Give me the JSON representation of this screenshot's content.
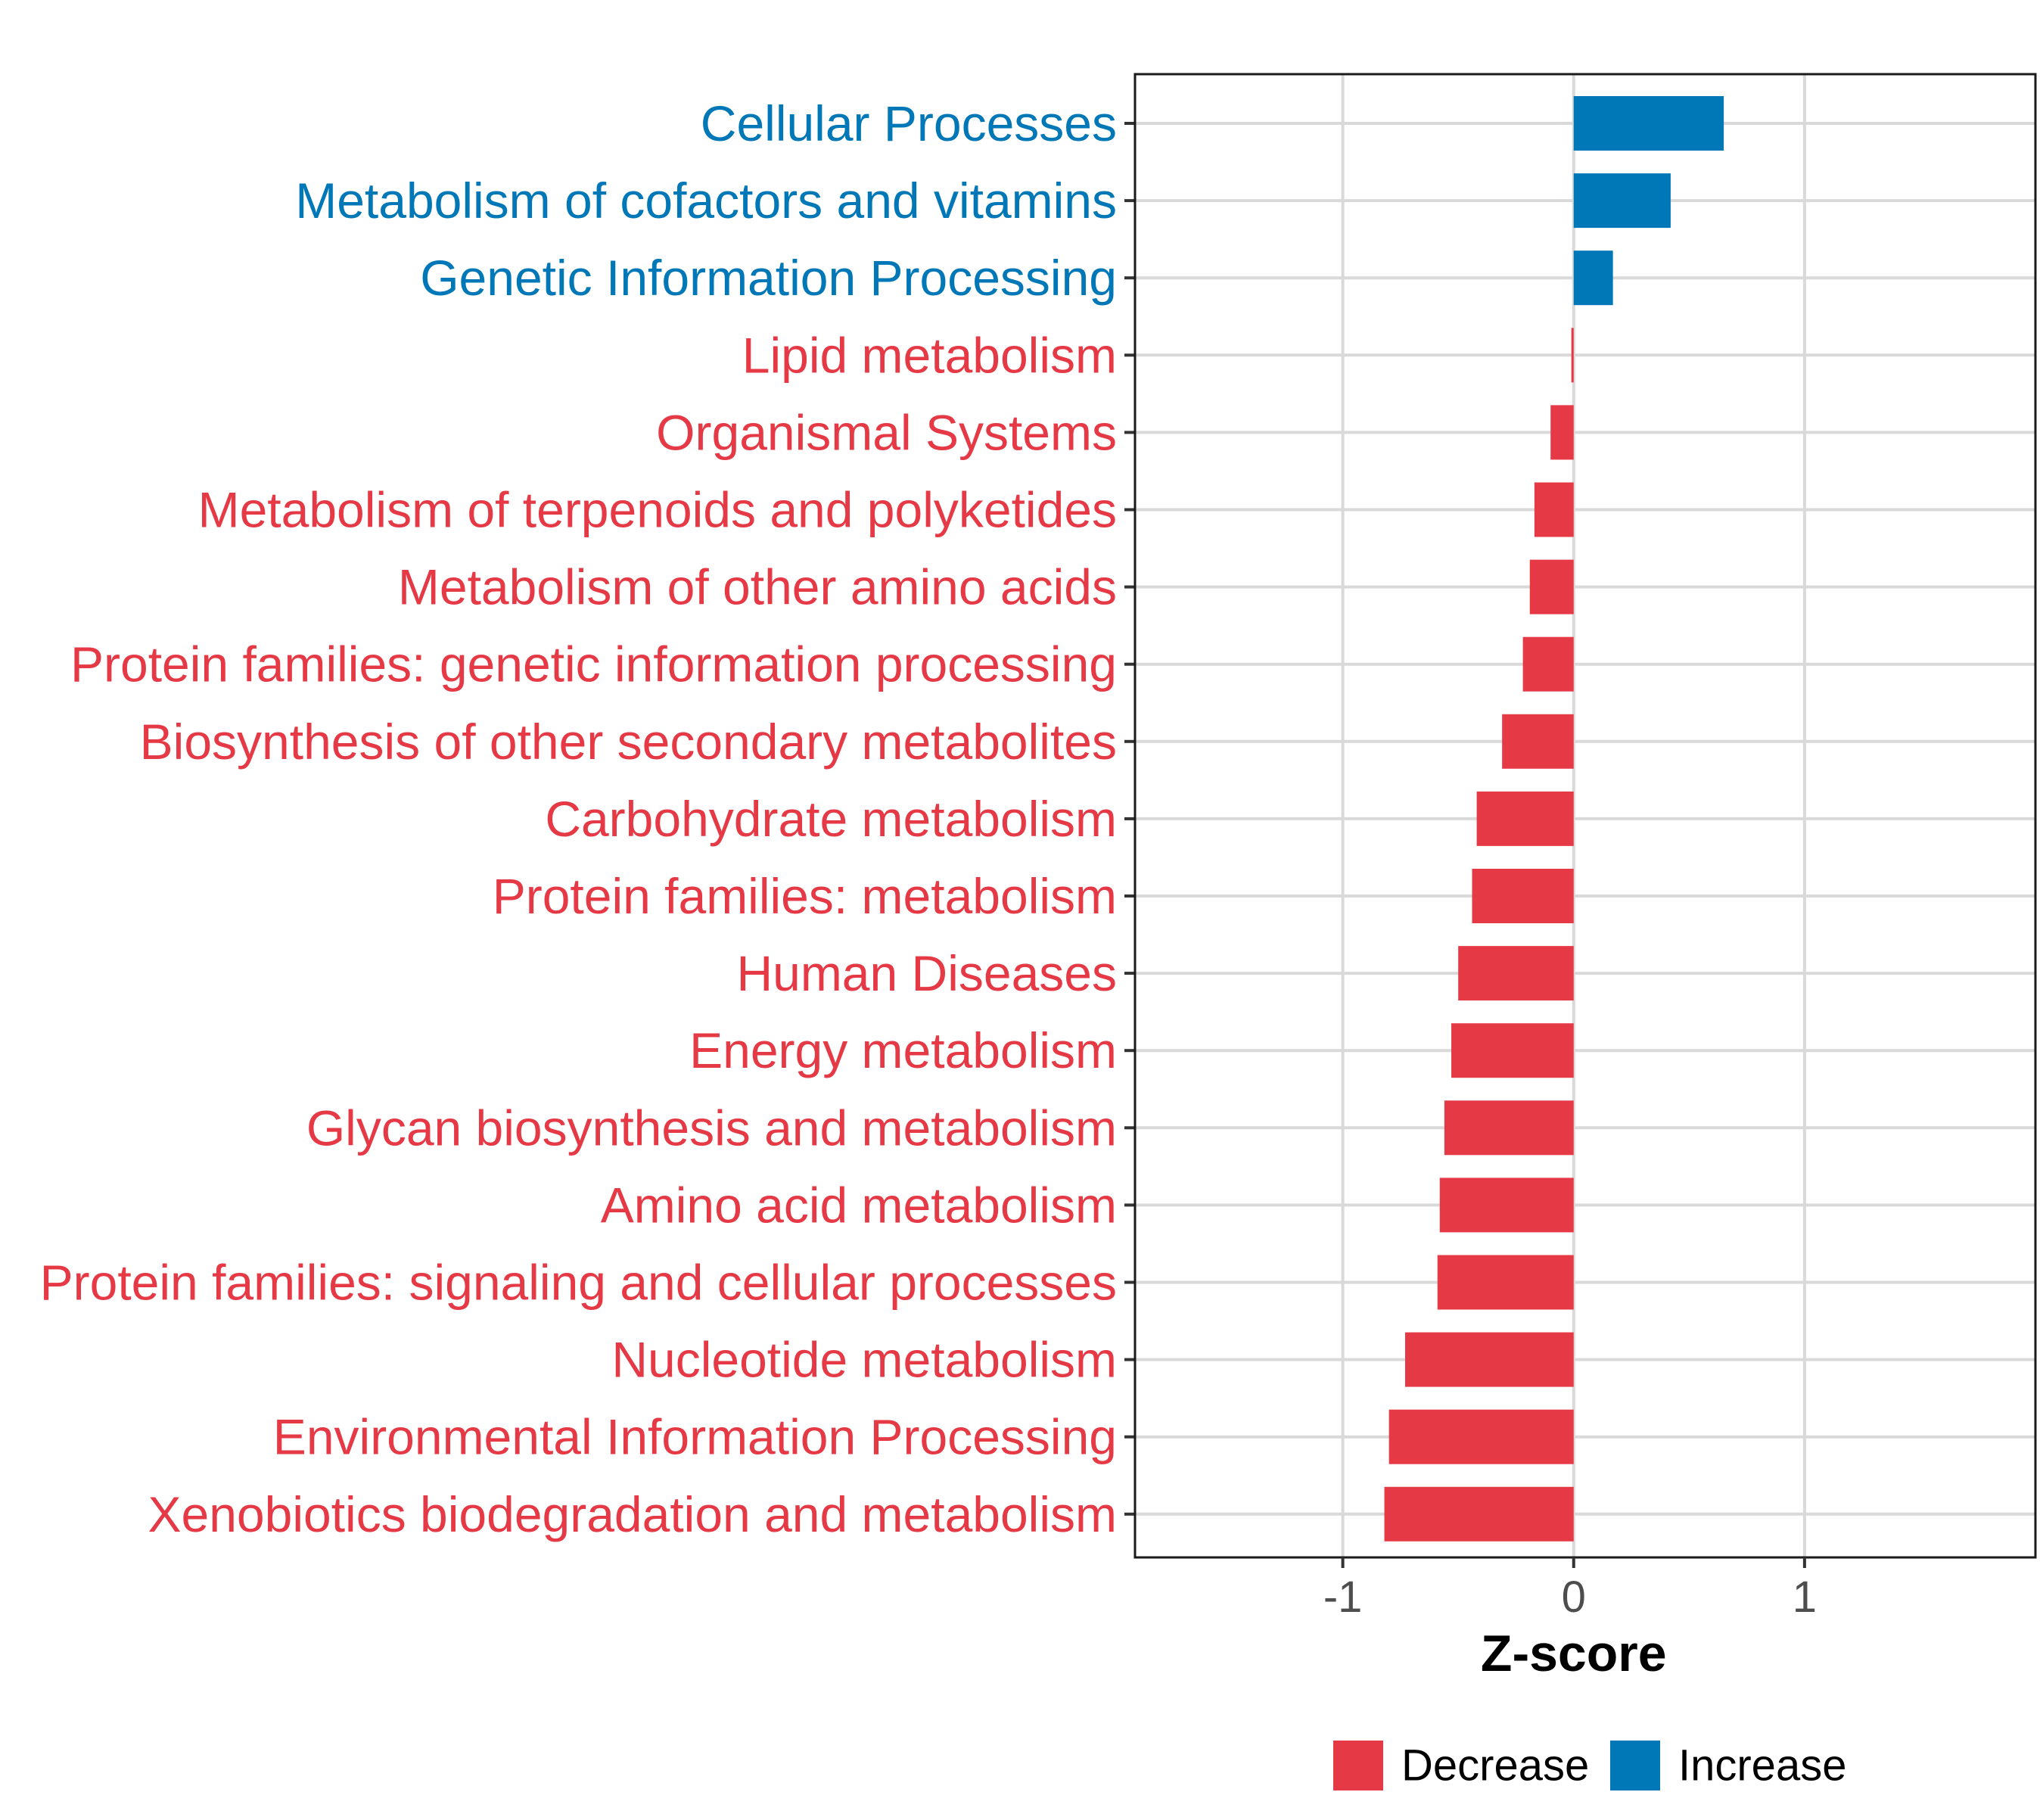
{
  "chart_data": {
    "type": "bar",
    "orientation": "horizontal",
    "title": "",
    "xlabel": "Z-score",
    "ylabel": "",
    "xlim": [
      -1.9,
      2.0
    ],
    "xticks": [
      -1,
      0,
      1
    ],
    "xtick_labels": [
      "-1",
      "0",
      "1"
    ],
    "grid": true,
    "legend_position": "bottom",
    "colors": {
      "Decrease": "#e63946",
      "Increase": "#0077b6"
    },
    "legend": [
      {
        "name": "Decrease",
        "color": "#e63946"
      },
      {
        "name": "Increase",
        "color": "#0077b6"
      }
    ],
    "categories": [
      "Cellular Processes",
      "Metabolism of cofactors and vitamins",
      "Genetic Information Processing",
      "Lipid metabolism",
      "Organismal Systems",
      "Metabolism of terpenoids and polyketides",
      "Metabolism of other amino acids",
      "Protein families: genetic information processing",
      "Biosynthesis of other secondary metabolites",
      "Carbohydrate metabolism",
      "Protein families: metabolism",
      "Human Diseases",
      "Energy metabolism",
      "Glycan biosynthesis and metabolism",
      "Amino acid metabolism",
      "Protein families: signaling and cellular processes",
      "Nucleotide metabolism",
      "Environmental Information Processing",
      "Xenobiotics biodegradation and metabolism"
    ],
    "values": [
      0.65,
      0.42,
      0.17,
      -0.01,
      -0.1,
      -0.17,
      -0.19,
      -0.22,
      -0.31,
      -0.42,
      -0.44,
      -0.5,
      -0.53,
      -0.56,
      -0.58,
      -0.59,
      -0.73,
      -0.8,
      -0.82
    ],
    "groups": [
      "Increase",
      "Increase",
      "Increase",
      "Decrease",
      "Decrease",
      "Decrease",
      "Decrease",
      "Decrease",
      "Decrease",
      "Decrease",
      "Decrease",
      "Decrease",
      "Decrease",
      "Decrease",
      "Decrease",
      "Decrease",
      "Decrease",
      "Decrease",
      "Decrease"
    ]
  }
}
